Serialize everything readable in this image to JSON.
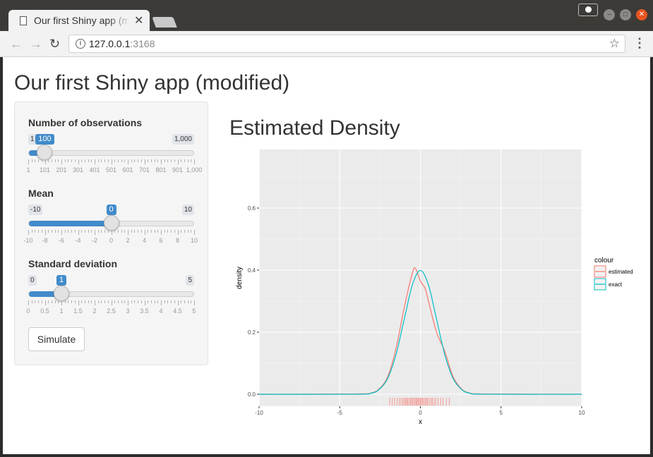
{
  "browser": {
    "tab_title": "Our first Shiny app (modified)",
    "url_host": "127.0.0.1",
    "url_port": ":3168"
  },
  "app": {
    "title": "Our first Shiny app (modified)",
    "sliders": [
      {
        "label": "Number of observations",
        "min": "1",
        "max": "1,000",
        "value": "100",
        "fraction": 0.099,
        "ticks": [
          "1",
          "101",
          "201",
          "301",
          "401",
          "501",
          "601",
          "701",
          "801",
          "901",
          "1,000"
        ]
      },
      {
        "label": "Mean",
        "min": "-10",
        "max": "10",
        "value": "0",
        "fraction": 0.5,
        "ticks": [
          "-10",
          "-8",
          "-6",
          "-4",
          "-2",
          "0",
          "2",
          "4",
          "6",
          "8",
          "10"
        ]
      },
      {
        "label": "Standard deviation",
        "min": "0",
        "max": "5",
        "value": "1",
        "fraction": 0.2,
        "ticks": [
          "0",
          "0.5",
          "1",
          "1.5",
          "2",
          "2.5",
          "3",
          "3.5",
          "4",
          "4.5",
          "5"
        ]
      }
    ],
    "simulate_label": "Simulate",
    "plot_title": "Estimated Density"
  },
  "chart_data": {
    "type": "line",
    "title": "",
    "xlabel": "x",
    "ylabel": "density",
    "xlim": [
      -10,
      10
    ],
    "ylim": [
      0,
      0.75
    ],
    "xticks": [
      "-10",
      "-5",
      "0",
      "5",
      "10"
    ],
    "yticks": [
      "0.0",
      "0.2",
      "0.4",
      "0.6"
    ],
    "legend_title": "colour",
    "legend_position": "right",
    "grid": true,
    "series": [
      {
        "name": "estimated",
        "color": "#f8766d",
        "x": [
          -10,
          -4,
          -3,
          -2.5,
          -2,
          -1.5,
          -1,
          -0.5,
          -0.3,
          0,
          0.3,
          0.5,
          1,
          1.5,
          2,
          2.5,
          3,
          4,
          10
        ],
        "y": [
          0,
          0.001,
          0.005,
          0.02,
          0.06,
          0.15,
          0.28,
          0.39,
          0.405,
          0.365,
          0.34,
          0.3,
          0.2,
          0.14,
          0.06,
          0.02,
          0.005,
          0.001,
          0
        ]
      },
      {
        "name": "exact",
        "color": "#00bfc4",
        "x": [
          -10,
          -4,
          -3,
          -2.5,
          -2,
          -1.5,
          -1,
          -0.5,
          0,
          0.5,
          1,
          1.5,
          2,
          2.5,
          3,
          4,
          10
        ],
        "y": [
          0,
          0.0001,
          0.004,
          0.018,
          0.054,
          0.13,
          0.242,
          0.352,
          0.399,
          0.352,
          0.242,
          0.13,
          0.054,
          0.018,
          0.004,
          0.0001,
          0
        ]
      }
    ],
    "rug": [
      -1.9,
      -1.75,
      -1.6,
      -1.45,
      -1.3,
      -1.2,
      -1.1,
      -1.0,
      -0.92,
      -0.85,
      -0.78,
      -0.7,
      -0.62,
      -0.55,
      -0.48,
      -0.4,
      -0.33,
      -0.26,
      -0.2,
      -0.13,
      -0.06,
      0.0,
      0.07,
      0.14,
      0.22,
      0.3,
      0.38,
      0.45,
      0.55,
      0.65,
      0.75,
      0.85,
      0.95,
      1.1,
      1.25,
      1.4,
      1.6,
      1.8
    ]
  }
}
